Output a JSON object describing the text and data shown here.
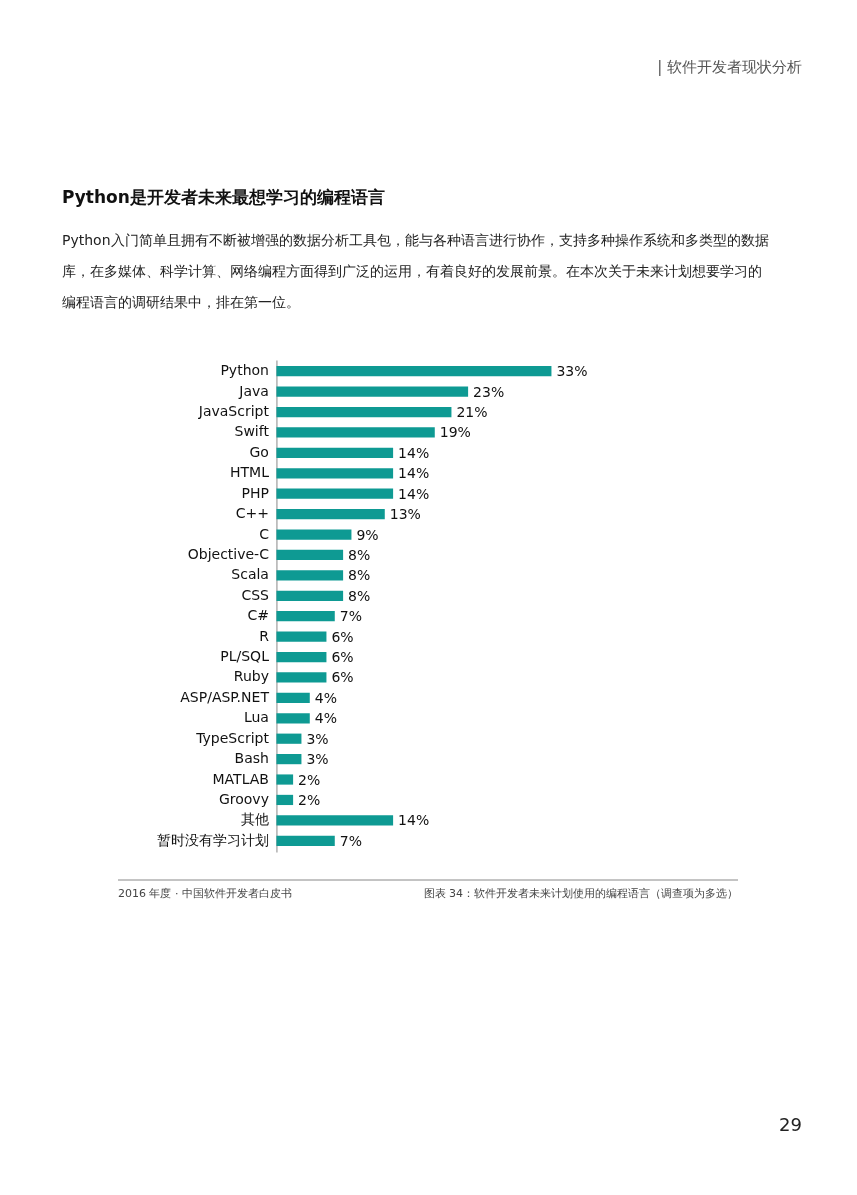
{
  "chart_data": {
    "type": "bar",
    "orientation": "horizontal",
    "title": "Python是开发者未来最想学习的编程语言",
    "subtitle": "Python入门简单且拥有不断被增强的数据分析工具包，能与各种语言进行协作，支持多种操作系统和多类型的数据库，在多媒体、科学计算、网络编程方面得到广泛的运用，有着良好的发展前景。在本次关于未来计划想要学习的编程语言的调研结果中，排在第一位。",
    "categories": [
      "Python",
      "Java",
      "JavaScript",
      "Swift",
      "Go",
      "HTML",
      "PHP",
      "C++",
      "C",
      "Objective-C",
      "Scala",
      "CSS",
      "C#",
      "R",
      "PL/SQL",
      "Ruby",
      "ASP/ASP.NET",
      "Lua",
      "TypeScript",
      "Bash",
      "MATLAB",
      "Groovy",
      "其他",
      "暂时没有学习计划"
    ],
    "values": [
      33,
      23,
      21,
      19,
      14,
      14,
      14,
      13,
      9,
      8,
      8,
      8,
      7,
      6,
      6,
      6,
      4,
      4,
      3,
      3,
      2,
      2,
      14,
      7
    ],
    "value_labels": [
      "33%",
      "23%",
      "21%",
      "19%",
      "14%",
      "14%",
      "14%",
      "13%",
      "9%",
      "8%",
      "8%",
      "8%",
      "7%",
      "6%",
      "6%",
      "6%",
      "4%",
      "4%",
      "3%",
      "3%",
      "2%",
      "2%",
      "14%",
      "7%"
    ],
    "color": "#0e9a93",
    "tick_labels": "y",
    "annotations": [
      "| 软件开发者现状分析",
      "2016 年度 · 中国软件开发者白皮书",
      "图表 34：软件开发者未来计划使用的编程语言（调查项为多选）",
      "29"
    ]
  }
}
